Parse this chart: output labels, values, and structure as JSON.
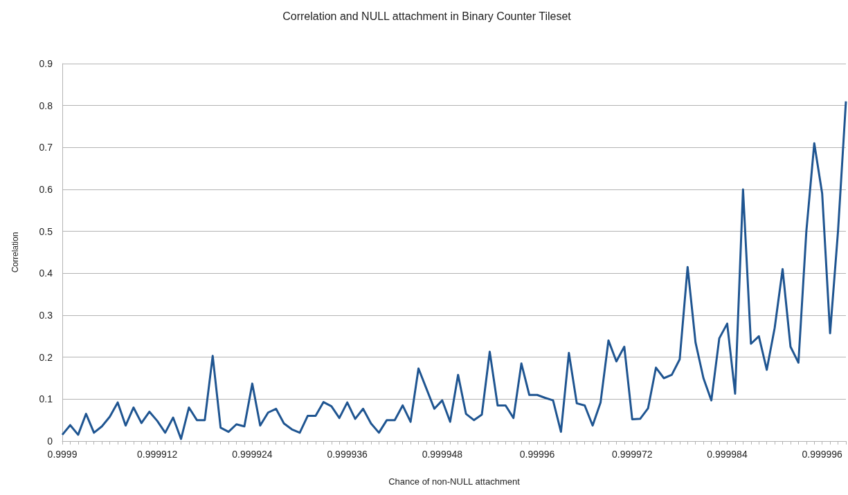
{
  "chart_data": {
    "type": "line",
    "title": "Correlation and NULL attachment in Binary Counter Tileset",
    "xlabel": "Chance of non-NULL attachment",
    "ylabel": "Correlation",
    "categories": [
      "0.9999",
      null,
      null,
      null,
      null,
      null,
      null,
      null,
      null,
      null,
      null,
      null,
      "0.999912",
      null,
      null,
      null,
      null,
      null,
      null,
      null,
      null,
      null,
      null,
      null,
      "0.999924",
      null,
      null,
      null,
      null,
      null,
      null,
      null,
      null,
      null,
      null,
      null,
      "0.999936",
      null,
      null,
      null,
      null,
      null,
      null,
      null,
      null,
      null,
      null,
      null,
      "0.999948",
      null,
      null,
      null,
      null,
      null,
      null,
      null,
      null,
      null,
      null,
      null,
      "0.99996",
      null,
      null,
      null,
      null,
      null,
      null,
      null,
      null,
      null,
      null,
      null,
      "0.999972",
      null,
      null,
      null,
      null,
      null,
      null,
      null,
      null,
      null,
      null,
      null,
      "0.999984",
      null,
      null,
      null,
      null,
      null,
      null,
      null,
      null,
      null,
      null,
      null,
      "0.999996",
      null,
      null,
      null
    ],
    "series": [
      {
        "color": "#1f5591",
        "values": [
          0.015,
          0.038,
          0.015,
          0.065,
          0.02,
          0.035,
          0.058,
          0.092,
          0.037,
          0.08,
          0.043,
          0.07,
          0.048,
          0.02,
          0.056,
          0.005,
          0.08,
          0.05,
          0.05,
          0.203,
          0.032,
          0.022,
          0.04,
          0.035,
          0.137,
          0.037,
          0.068,
          0.077,
          0.042,
          0.028,
          0.02,
          0.06,
          0.06,
          0.093,
          0.083,
          0.055,
          0.092,
          0.053,
          0.077,
          0.042,
          0.02,
          0.05,
          0.05,
          0.085,
          0.046,
          0.173,
          0.125,
          0.077,
          0.097,
          0.046,
          0.158,
          0.065,
          0.05,
          0.063,
          0.213,
          0.085,
          0.085,
          0.055,
          0.185,
          0.11,
          0.11,
          0.103,
          0.097,
          0.022,
          0.21,
          0.09,
          0.085,
          0.037,
          0.092,
          0.24,
          0.19,
          0.225,
          0.052,
          0.053,
          0.078,
          0.175,
          0.15,
          0.158,
          0.195,
          0.415,
          0.235,
          0.15,
          0.097,
          0.245,
          0.28,
          0.113,
          0.6,
          0.232,
          0.25,
          0.17,
          0.27,
          0.41,
          0.225,
          0.187,
          0.5,
          0.71,
          0.59,
          0.257,
          0.5,
          0.81
        ]
      }
    ],
    "ylim": [
      0,
      0.9
    ],
    "yticks": [
      0,
      0.1,
      0.2,
      0.3,
      0.4,
      0.5,
      0.6,
      0.7,
      0.8,
      0.9
    ],
    "grid": "y",
    "marker": "none",
    "line_style": "solid"
  }
}
